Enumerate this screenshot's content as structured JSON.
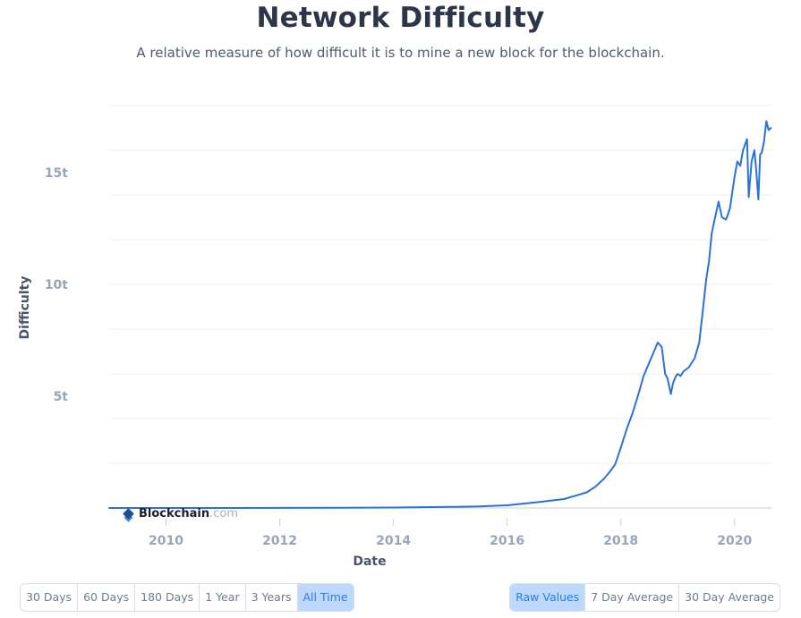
{
  "header": {
    "title": "Network Difficulty",
    "subtitle": "A relative measure of how difficult it is to mine a new block for the blockchain."
  },
  "brand": {
    "name": "Blockchain",
    "suffix": ".com"
  },
  "range_buttons": [
    {
      "label": "30 Days",
      "active": false
    },
    {
      "label": "60 Days",
      "active": false
    },
    {
      "label": "180 Days",
      "active": false
    },
    {
      "label": "1 Year",
      "active": false
    },
    {
      "label": "3 Years",
      "active": false
    },
    {
      "label": "All Time",
      "active": true
    }
  ],
  "mode_buttons": [
    {
      "label": "Raw Values",
      "active": true
    },
    {
      "label": "7 Day Average",
      "active": false
    },
    {
      "label": "30 Day Average",
      "active": false
    }
  ],
  "colors": {
    "line": "#2a72d8",
    "grid": "#eceff4",
    "active_bg": "#bcd9fb",
    "active_text": "#2f7be6"
  },
  "chart_data": {
    "type": "line",
    "title": "Network Difficulty",
    "xlabel": "Date",
    "ylabel": "Difficulty",
    "xlim": [
      2009.0,
      2020.65
    ],
    "ylim": [
      0,
      18
    ],
    "x_ticks": [
      2010,
      2012,
      2014,
      2016,
      2018,
      2020
    ],
    "x_tick_labels": [
      "2010",
      "2012",
      "2014",
      "2016",
      "2018",
      "2020"
    ],
    "y_ticks": [
      5,
      10,
      15
    ],
    "y_tick_labels": [
      "5t",
      "10t",
      "15t"
    ],
    "grid": true,
    "series": [
      {
        "name": "Difficulty",
        "x": [
          2009.0,
          2011.0,
          2013.0,
          2014.0,
          2015.0,
          2015.5,
          2016.0,
          2016.5,
          2017.0,
          2017.2,
          2017.4,
          2017.55,
          2017.7,
          2017.8,
          2017.9,
          2018.0,
          2018.1,
          2018.2,
          2018.3,
          2018.4,
          2018.5,
          2018.6,
          2018.65,
          2018.72,
          2018.78,
          2018.82,
          2018.88,
          2018.92,
          2018.97,
          2019.0,
          2019.05,
          2019.1,
          2019.2,
          2019.3,
          2019.38,
          2019.45,
          2019.5,
          2019.55,
          2019.6,
          2019.65,
          2019.72,
          2019.78,
          2019.85,
          2019.88,
          2019.92,
          2020.0,
          2020.05,
          2020.1,
          2020.15,
          2020.22,
          2020.25,
          2020.3,
          2020.35,
          2020.38,
          2020.42,
          2020.45,
          2020.48,
          2020.52,
          2020.56,
          2020.6,
          2020.64
        ],
        "values": [
          0.0,
          0.0,
          0.01,
          0.02,
          0.05,
          0.07,
          0.12,
          0.25,
          0.4,
          0.55,
          0.7,
          0.95,
          1.3,
          1.6,
          1.95,
          2.7,
          3.5,
          4.2,
          5.0,
          5.9,
          6.5,
          7.1,
          7.4,
          7.2,
          6.0,
          5.8,
          5.1,
          5.6,
          5.9,
          6.0,
          5.9,
          6.1,
          6.3,
          6.7,
          7.4,
          9.0,
          10.2,
          11.0,
          12.3,
          12.9,
          13.7,
          13.0,
          12.9,
          13.1,
          13.4,
          14.8,
          15.5,
          15.3,
          16.0,
          16.5,
          13.9,
          15.5,
          16.0,
          15.2,
          13.8,
          15.8,
          15.9,
          16.4,
          17.3,
          16.9,
          17.0
        ]
      }
    ]
  }
}
